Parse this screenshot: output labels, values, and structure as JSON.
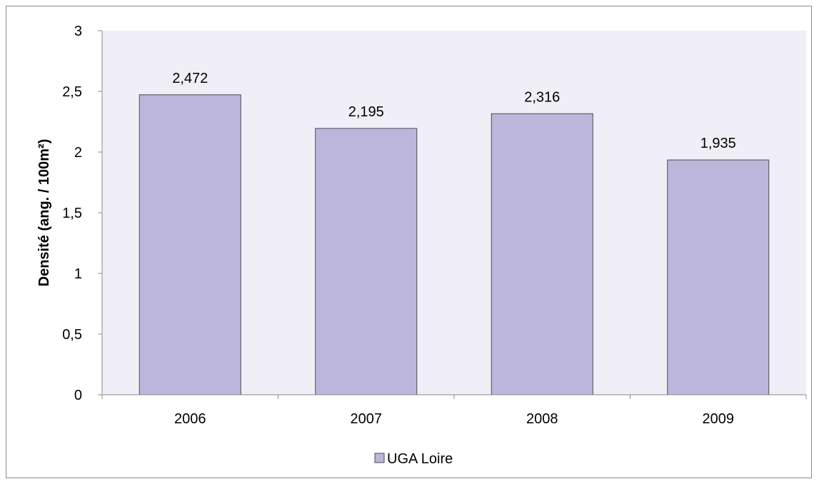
{
  "chart_data": {
    "type": "bar",
    "title": "",
    "xlabel": "",
    "ylabel": "Densité (ang. / 100m²)",
    "categories": [
      "2006",
      "2007",
      "2008",
      "2009"
    ],
    "series": [
      {
        "name": "UGA Loire",
        "values": [
          2.472,
          2.195,
          2.316,
          1.935
        ],
        "data_labels": [
          "2,472",
          "2,195",
          "2,316",
          "1,935"
        ]
      }
    ],
    "ylim": [
      0,
      3
    ],
    "y_ticks": [
      0,
      0.5,
      1,
      1.5,
      2,
      2.5,
      3
    ],
    "y_tick_labels": [
      "0",
      "0,5",
      "1",
      "1,5",
      "2",
      "2,5",
      "3"
    ],
    "grid": false,
    "legend": "bottom",
    "colors": {
      "plot_background": "#f0eff7",
      "bar_fill": "#bdb6dc",
      "bar_stroke": "#4a4a4a",
      "axis": "#8c8c8c"
    }
  }
}
